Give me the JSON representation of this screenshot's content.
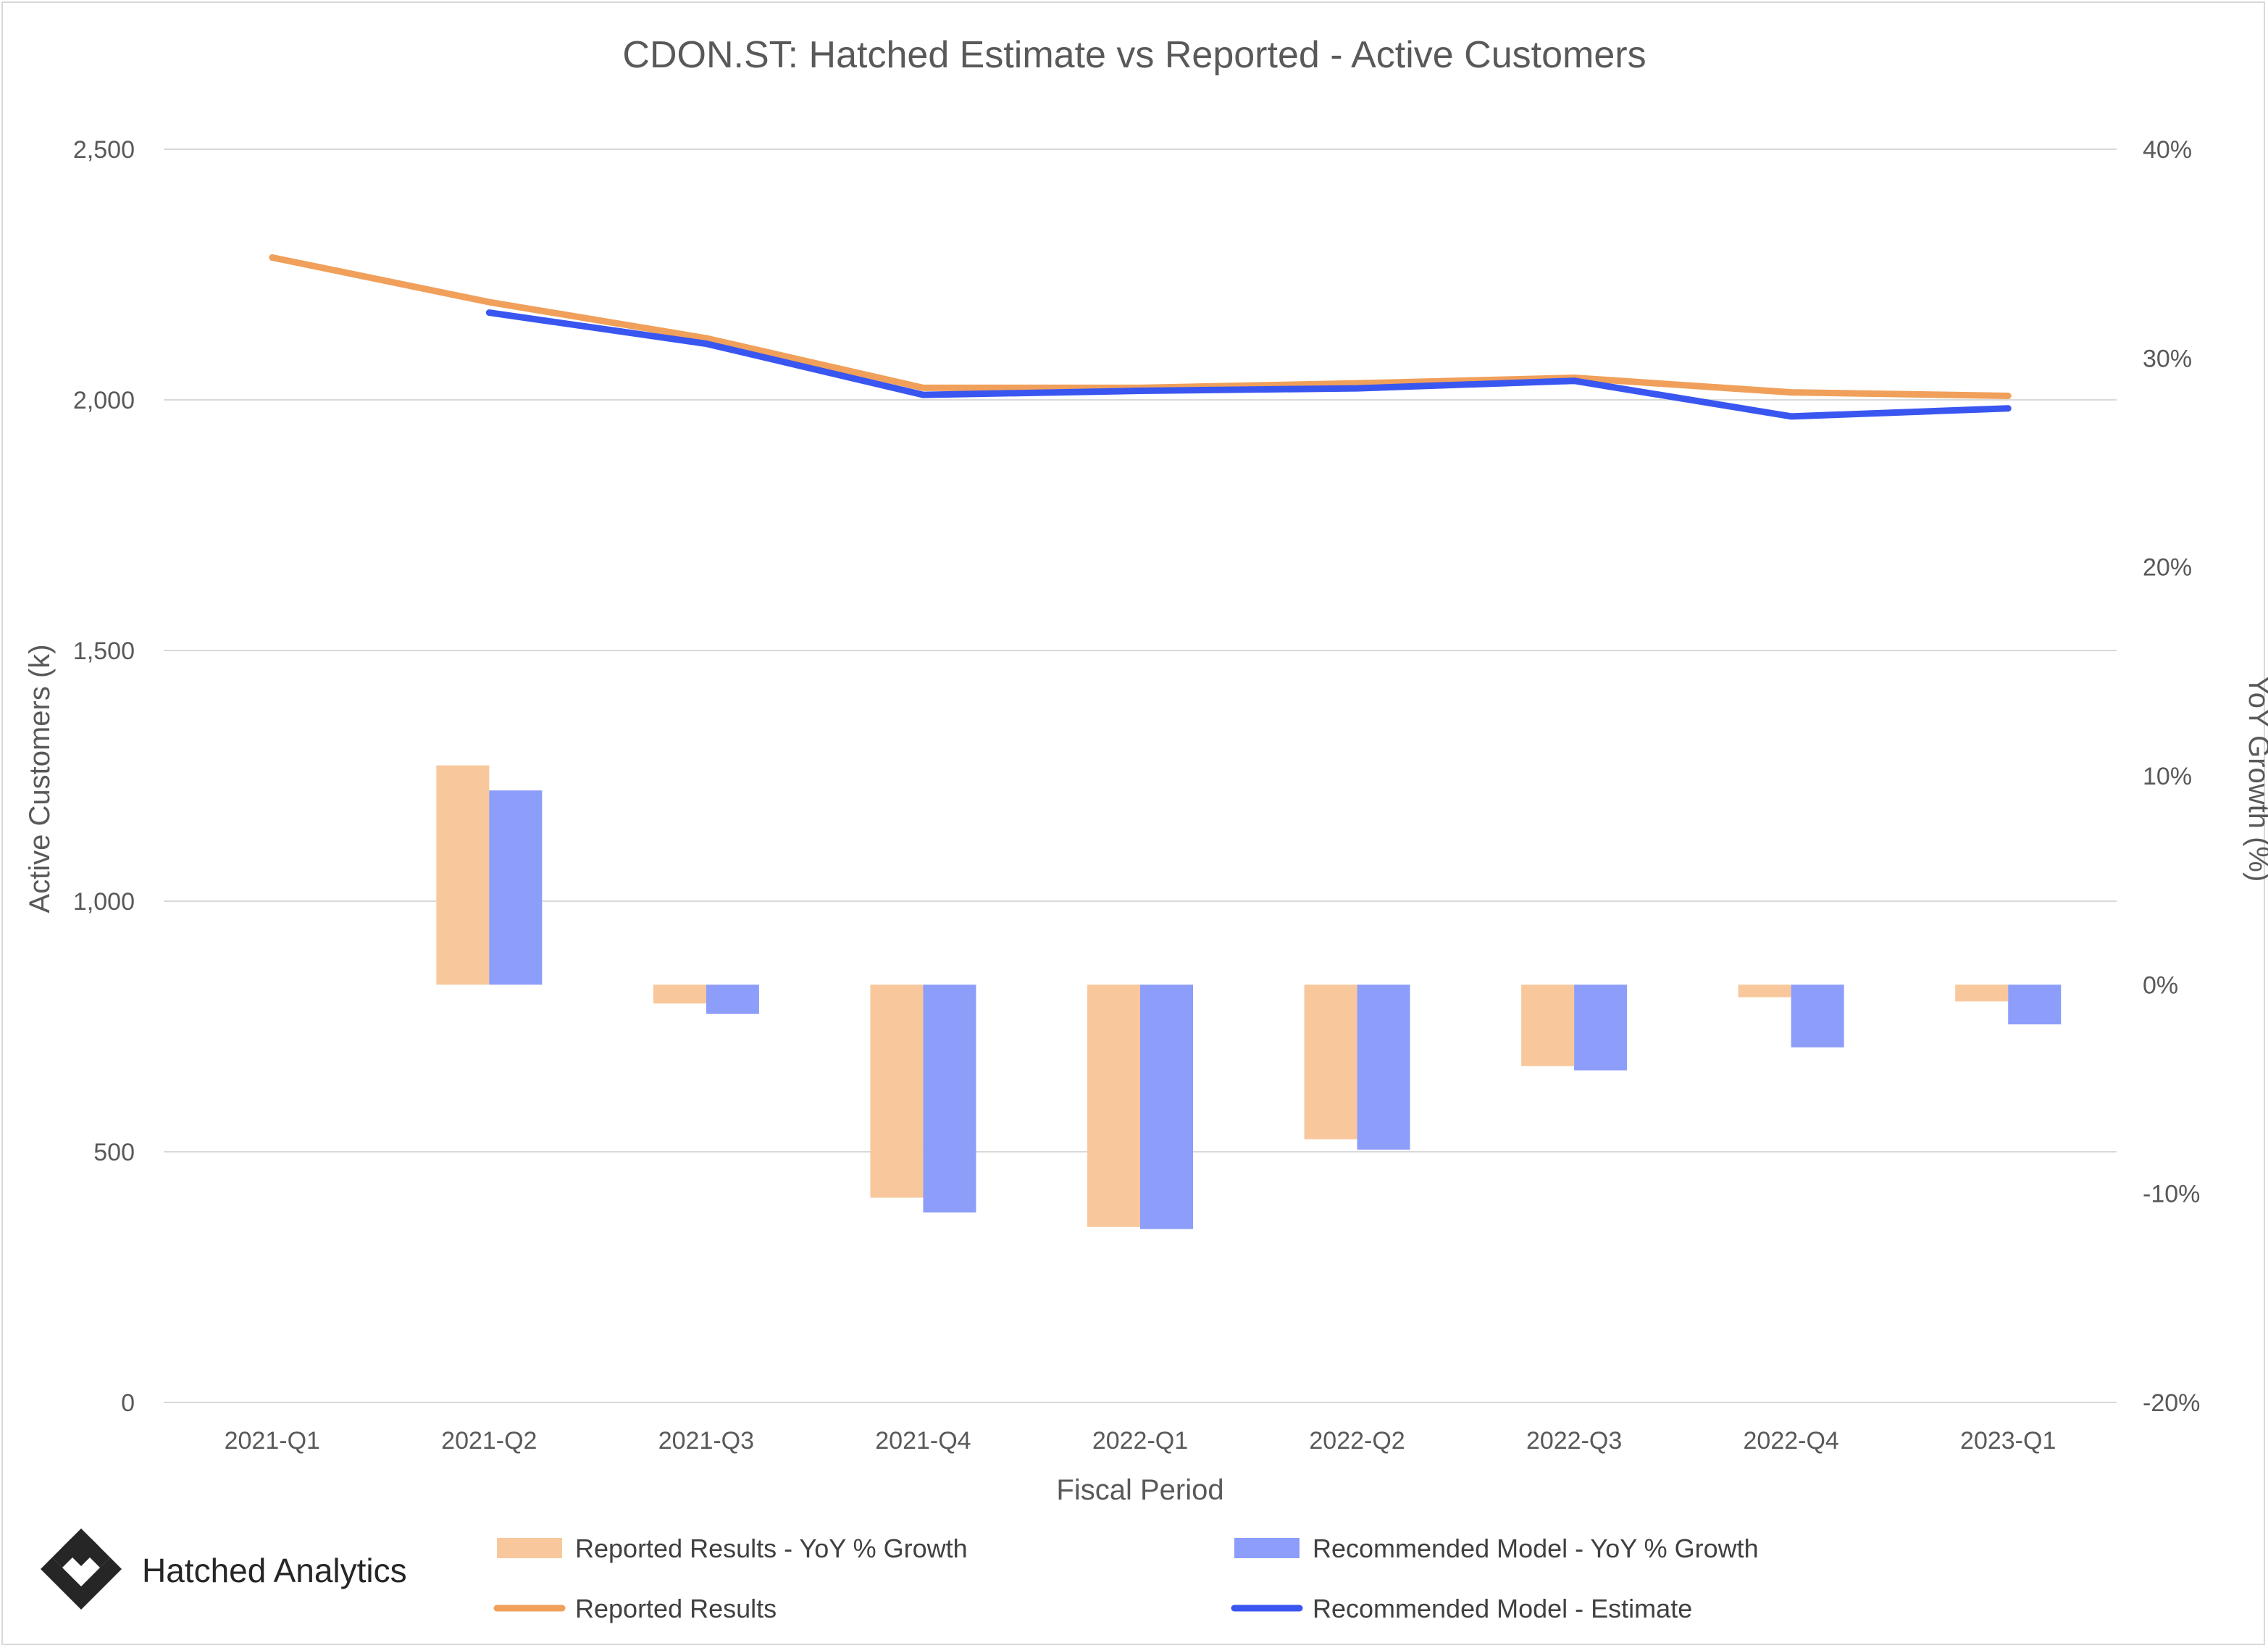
{
  "chart_data": {
    "type": "bar",
    "title": "CDON.ST: Hatched Estimate vs Reported - Active Customers",
    "xlabel": "Fiscal Period",
    "ylabel": "Active Customers (k)",
    "y2label": "YoY Growth (%)",
    "categories": [
      "2021-Q1",
      "2021-Q2",
      "2021-Q3",
      "2021-Q4",
      "2022-Q1",
      "2022-Q2",
      "2022-Q3",
      "2022-Q4",
      "2023-Q1"
    ],
    "ylim": [
      0,
      2500
    ],
    "y2lim": [
      -20,
      40
    ],
    "yticks": [
      "0",
      "500",
      "1,000",
      "1,500",
      "2,000",
      "2,500"
    ],
    "y2ticks": [
      "-20%",
      "-10%",
      "0%",
      "10%",
      "20%",
      "30%",
      "40%"
    ],
    "grid": true,
    "legend_position": "bottom",
    "series": [
      {
        "name": "Reported Results - YoY % Growth",
        "kind": "bar",
        "axis": "right",
        "color": "#f8c89c",
        "values": [
          null,
          10.5,
          -0.9,
          -10.2,
          -11.6,
          -7.4,
          -3.9,
          -0.6,
          -0.8
        ]
      },
      {
        "name": "Recommended Model - YoY % Growth",
        "kind": "bar",
        "axis": "right",
        "color": "#8c9dfa",
        "values": [
          null,
          9.3,
          -1.4,
          -10.9,
          -11.7,
          -7.9,
          -4.1,
          -3.0,
          -1.9
        ]
      },
      {
        "name": "Reported Results",
        "kind": "line",
        "axis": "left",
        "color": "#f0a05a",
        "values": [
          2284,
          2195,
          2123,
          2024,
          2024,
          2033,
          2044,
          2015,
          2008
        ]
      },
      {
        "name": "Recommended Model - Estimate",
        "kind": "line",
        "axis": "left",
        "color": "#3a56f0",
        "values": [
          null,
          2174,
          2112,
          2010,
          2018,
          2023,
          2038,
          1967,
          1983
        ]
      }
    ]
  },
  "branding": {
    "logo_text": "Hatched Analytics",
    "logo_icon": "hatched-diamond-icon"
  }
}
